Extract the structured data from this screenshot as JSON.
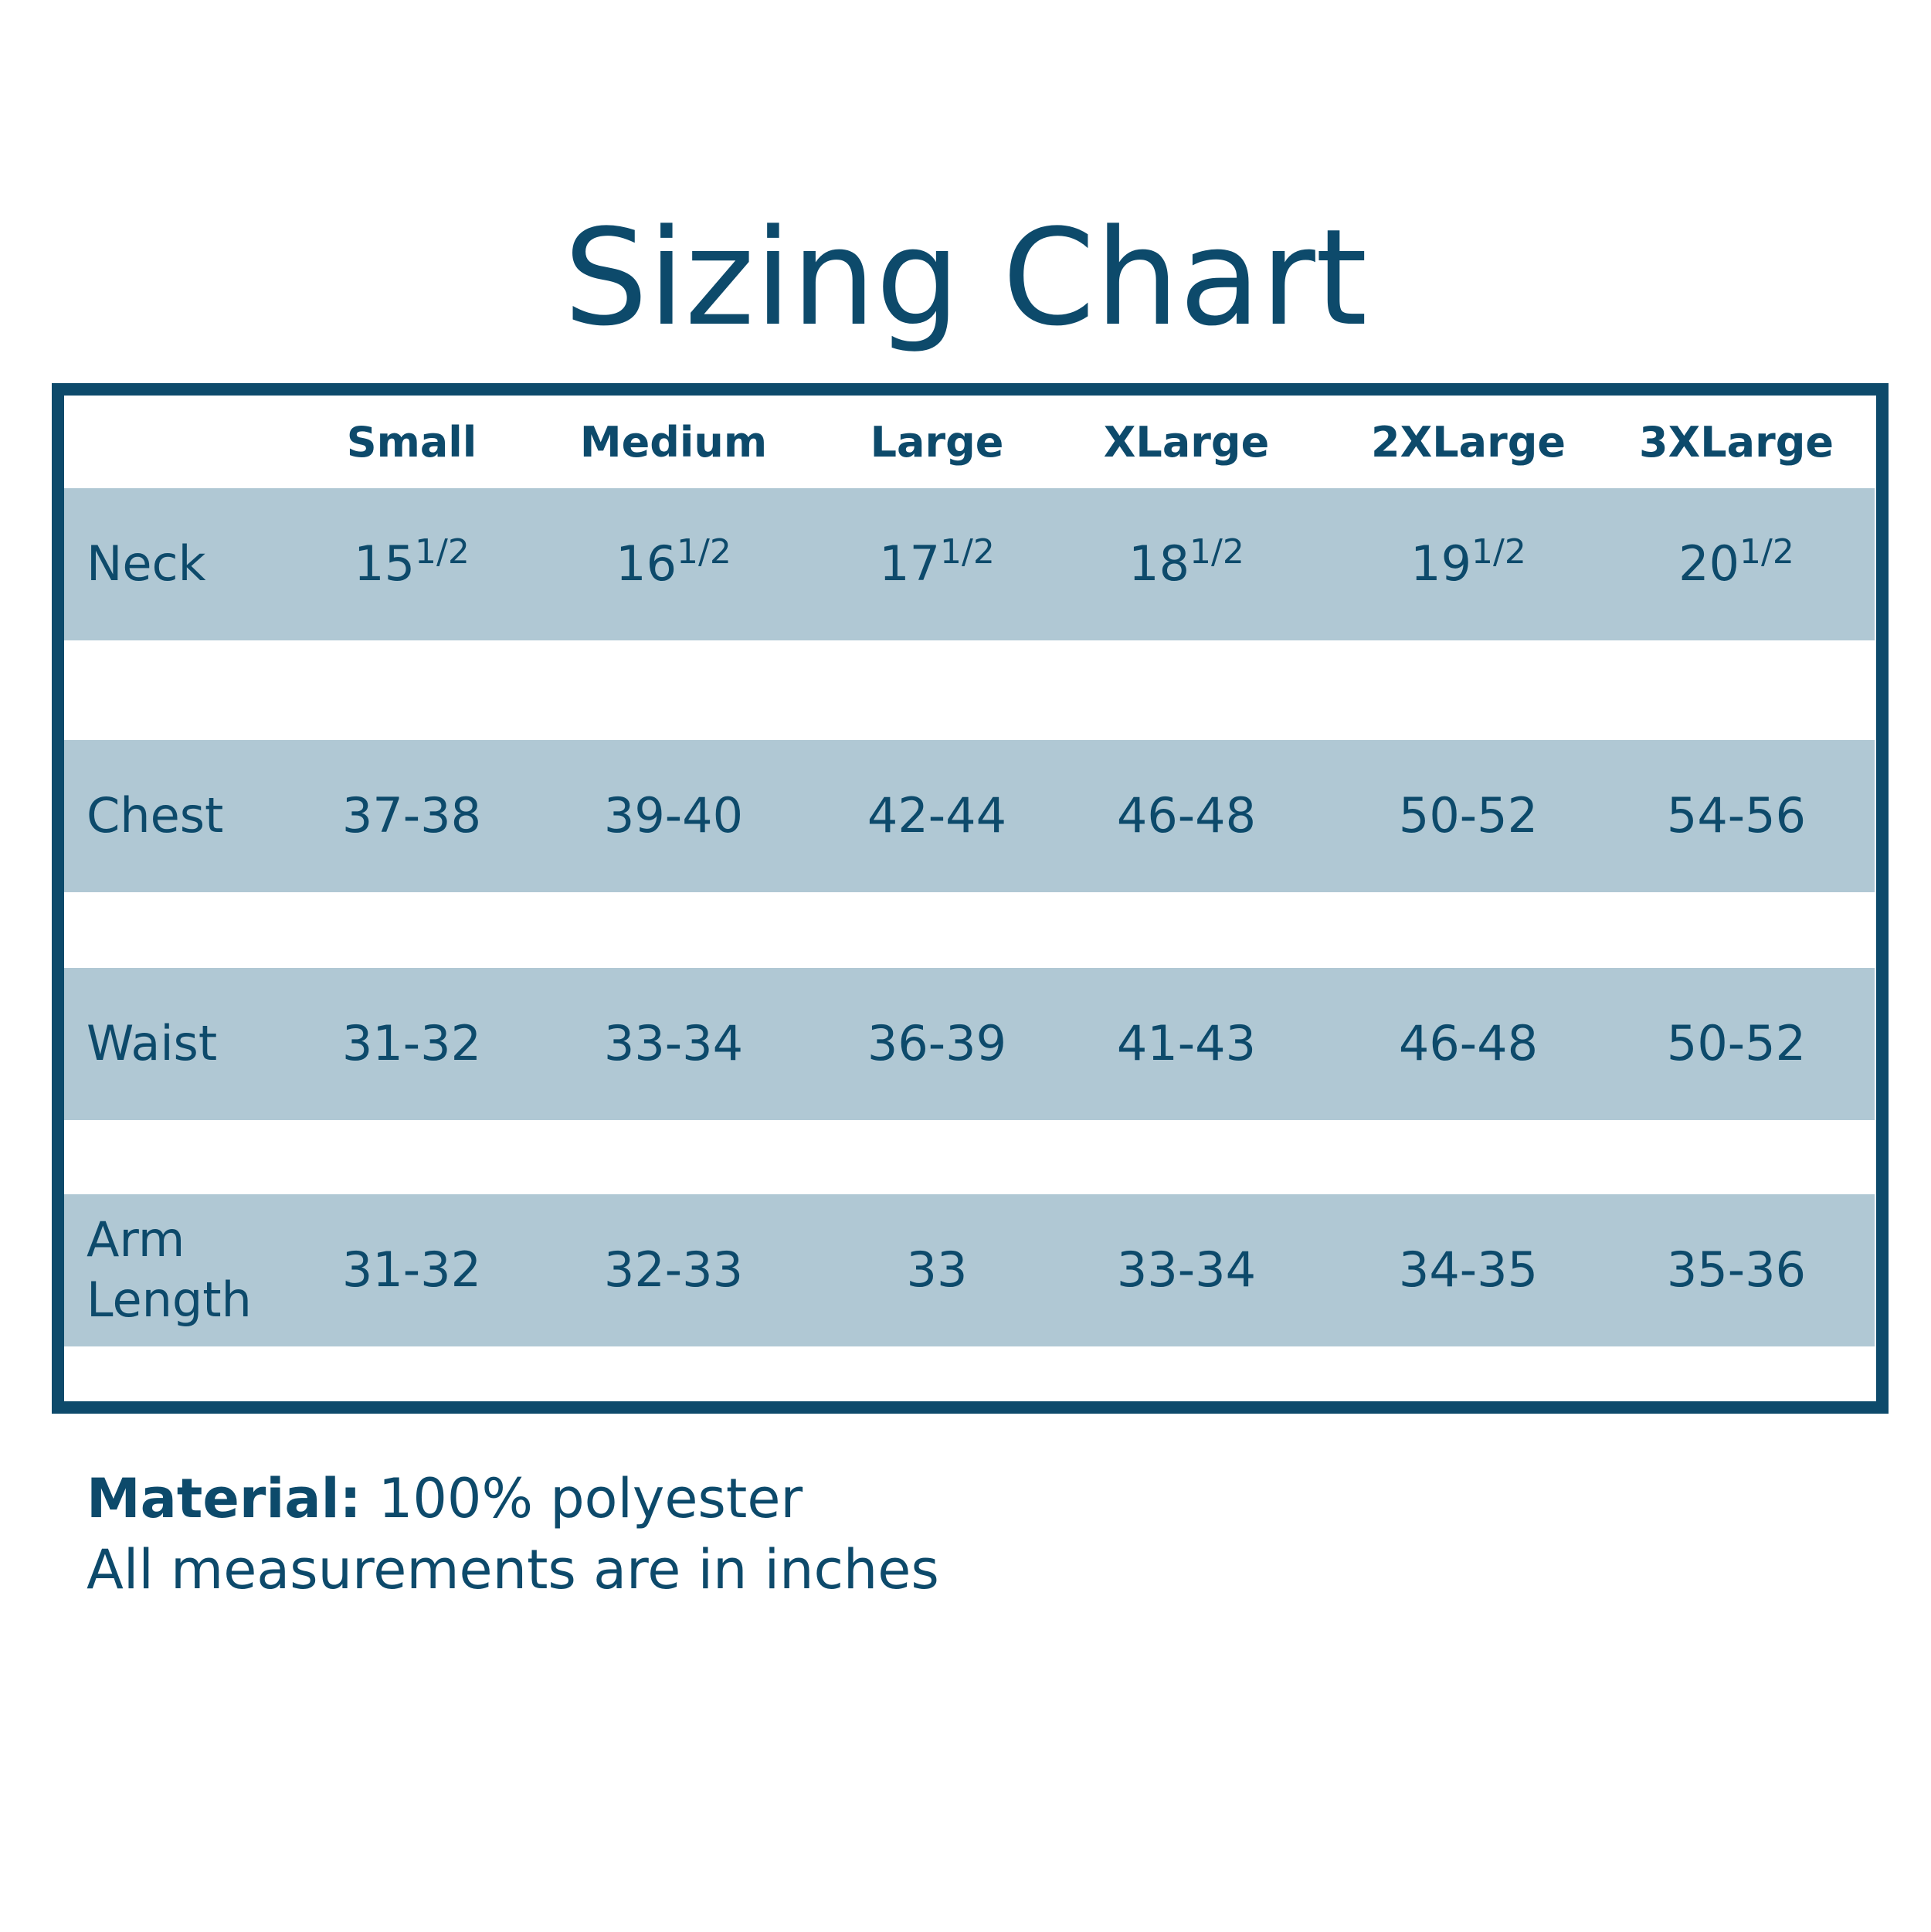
{
  "header": {
    "title": "Sizing Chart"
  },
  "table": {
    "columns": [
      "Small",
      "Medium",
      "Large",
      "XLarge",
      "2XLarge",
      "3XLarge"
    ],
    "rows": [
      {
        "label": "Neck",
        "cells": [
          {
            "whole": "15",
            "fraction": "1/2"
          },
          {
            "whole": "16",
            "fraction": "1/2"
          },
          {
            "whole": "17",
            "fraction": "1/2"
          },
          {
            "whole": "18",
            "fraction": "1/2"
          },
          {
            "whole": "19",
            "fraction": "1/2"
          },
          {
            "whole": "20",
            "fraction": "1/2"
          }
        ]
      },
      {
        "label": "Chest",
        "cells": [
          "37-38",
          "39-40",
          "42-44",
          "46-48",
          "50-52",
          "54-56"
        ]
      },
      {
        "label": "Waist",
        "cells": [
          "31-32",
          "33-34",
          "36-39",
          "41-43",
          "46-48",
          "50-52"
        ]
      },
      {
        "label": "Arm Length",
        "cells": [
          "31-32",
          "32-33",
          "33",
          "33-34",
          "34-35",
          "35-36"
        ]
      }
    ]
  },
  "footer": {
    "material_label": "Material:",
    "material_value": "100% polyester",
    "note": "All measurements are in inches"
  }
}
